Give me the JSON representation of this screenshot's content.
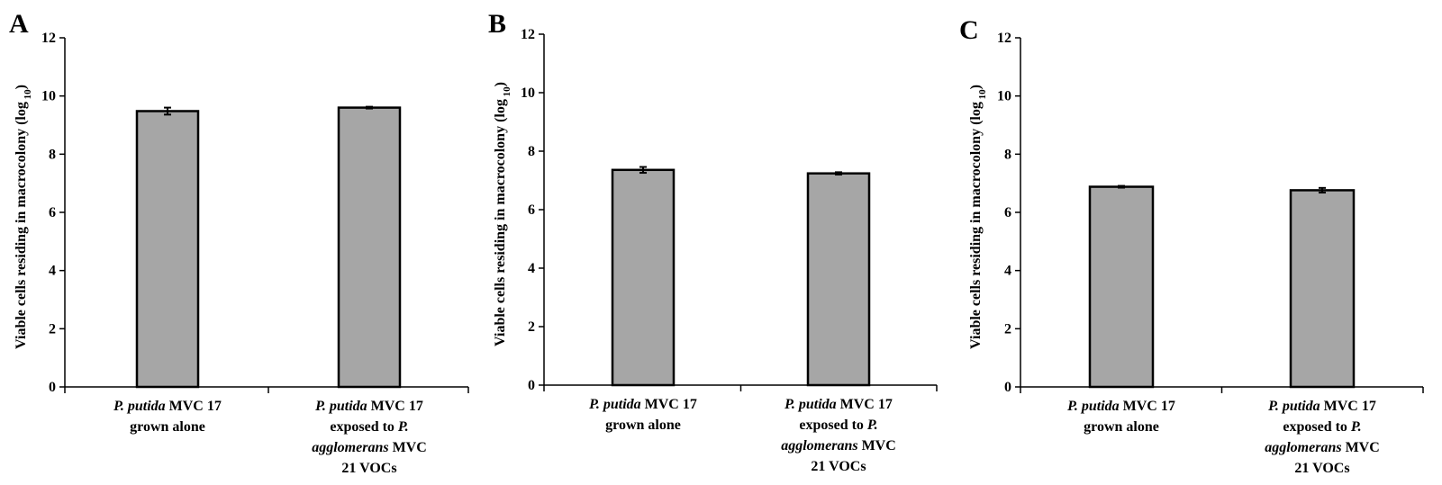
{
  "chart_data": [
    {
      "panel": "A",
      "type": "bar",
      "ylabel": "Viable cells residing in macrocolony (log",
      "ylabel_sub": "10",
      "ylabel_end": ")",
      "ylim": [
        0,
        12
      ],
      "yticks": [
        "0",
        "2",
        "4",
        "6",
        "8",
        "10",
        "12"
      ],
      "categories": [
        {
          "lines": [
            [
              {
                "t": "P. putida",
                "i": true
              },
              {
                "t": " MVC 17",
                "i": false
              }
            ],
            [
              {
                "t": "grown alone",
                "i": false
              }
            ]
          ]
        },
        {
          "lines": [
            [
              {
                "t": "P. putida",
                "i": true
              },
              {
                "t": " MVC 17",
                "i": false
              }
            ],
            [
              {
                "t": "exposed to ",
                "i": false
              },
              {
                "t": "P.",
                "i": true
              }
            ],
            [
              {
                "t": "agglomerans",
                "i": true
              },
              {
                "t": " MVC",
                "i": false
              }
            ],
            [
              {
                "t": "21 VOCs",
                "i": false
              }
            ]
          ]
        }
      ],
      "values": [
        9.48,
        9.6
      ],
      "errors": [
        0.12,
        0.03
      ]
    },
    {
      "panel": "B",
      "type": "bar",
      "ylabel": "Viable cells residing in macrocolony (log",
      "ylabel_sub": "10",
      "ylabel_end": ")",
      "ylim": [
        0,
        12
      ],
      "yticks": [
        "0",
        "2",
        "4",
        "6",
        "8",
        "10",
        "12"
      ],
      "categories": [
        {
          "lines": [
            [
              {
                "t": "P. putida",
                "i": true
              },
              {
                "t": " MVC 17",
                "i": false
              }
            ],
            [
              {
                "t": "grown alone",
                "i": false
              }
            ]
          ]
        },
        {
          "lines": [
            [
              {
                "t": "P. putida",
                "i": true
              },
              {
                "t": " MVC 17",
                "i": false
              }
            ],
            [
              {
                "t": "exposed to ",
                "i": false
              },
              {
                "t": "P.",
                "i": true
              }
            ],
            [
              {
                "t": "agglomerans",
                "i": true
              },
              {
                "t": " MVC",
                "i": false
              }
            ],
            [
              {
                "t": "21 VOCs",
                "i": false
              }
            ]
          ]
        }
      ],
      "values": [
        7.36,
        7.24
      ],
      "errors": [
        0.1,
        0.04
      ]
    },
    {
      "panel": "C",
      "type": "bar",
      "ylabel": "Viable cells residing in macrocolony (log",
      "ylabel_sub": "10",
      "ylabel_end": ")",
      "ylim": [
        0,
        12
      ],
      "yticks": [
        "0",
        "2",
        "4",
        "6",
        "8",
        "10",
        "12"
      ],
      "categories": [
        {
          "lines": [
            [
              {
                "t": "P. putida",
                "i": true
              },
              {
                "t": " MVC 17",
                "i": false
              }
            ],
            [
              {
                "t": "grown alone",
                "i": false
              }
            ]
          ]
        },
        {
          "lines": [
            [
              {
                "t": "P. putida",
                "i": true
              },
              {
                "t": " MVC 17",
                "i": false
              }
            ],
            [
              {
                "t": "exposed to ",
                "i": false
              },
              {
                "t": "P.",
                "i": true
              }
            ],
            [
              {
                "t": "agglomerans",
                "i": true
              },
              {
                "t": " MVC",
                "i": false
              }
            ],
            [
              {
                "t": "21 VOCs",
                "i": false
              }
            ]
          ]
        }
      ],
      "values": [
        6.88,
        6.76
      ],
      "errors": [
        0.03,
        0.08
      ]
    }
  ],
  "colors": {
    "bar_fill": "#a6a6a6",
    "bar_stroke": "#000000",
    "axis": "#000000"
  }
}
